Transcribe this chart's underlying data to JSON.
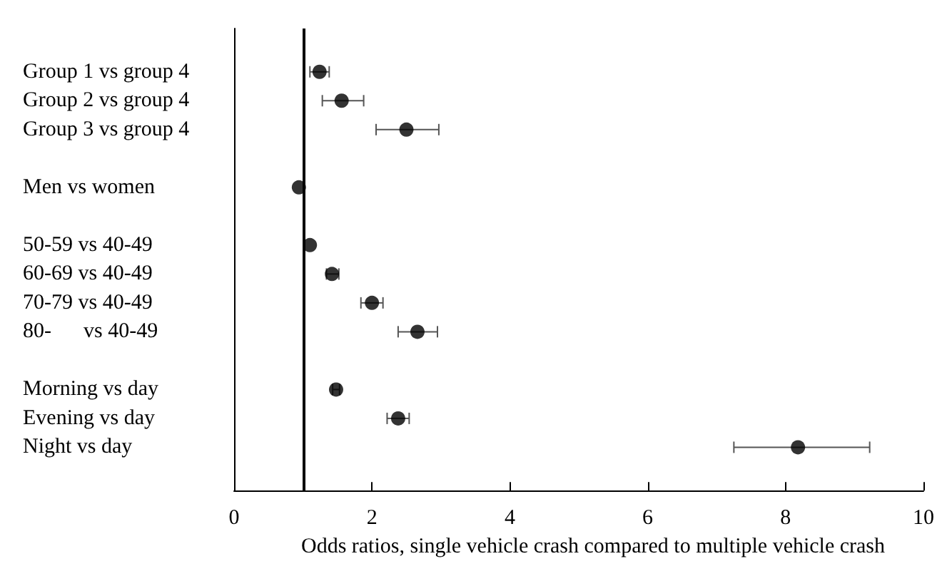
{
  "chart_data": {
    "type": "scatter",
    "orientation": "horizontal",
    "xlabel": "Odds ratios, single vehicle crash compared to multiple vehicle crash",
    "categories": [
      null,
      "Group 1 vs group 4",
      "Group 2 vs group 4",
      "Group 3 vs group 4",
      null,
      "Men vs women",
      null,
      "50-59 vs 40-49",
      "60-69 vs 40-49",
      "70-79 vs 40-49",
      "80-      vs 40-49",
      null,
      "Morning vs day",
      "Evening vs day",
      "Night vs day",
      null
    ],
    "series": [
      {
        "color": "#000000",
        "values": [
          null,
          1.24,
          1.56,
          2.5,
          null,
          0.94,
          null,
          1.1,
          1.42,
          2.0,
          2.66,
          null,
          1.48,
          2.38,
          8.18,
          null
        ],
        "errors": [
          null,
          [
            1.1,
            1.38
          ],
          [
            1.28,
            1.88
          ],
          [
            2.06,
            2.97
          ],
          null,
          null,
          null,
          null,
          [
            1.34,
            1.52
          ],
          [
            1.84,
            2.16
          ],
          [
            2.38,
            2.95
          ],
          null,
          [
            1.43,
            1.53
          ],
          [
            2.22,
            2.54
          ],
          [
            7.25,
            9.22
          ],
          null
        ]
      }
    ],
    "xlim": [
      0,
      10
    ],
    "xticks": [
      0,
      2,
      4,
      6,
      8,
      10
    ],
    "marker": "circle",
    "grid": false,
    "ref_lines": [
      {
        "axis": "x",
        "value": 1,
        "color": "#000000"
      }
    ]
  }
}
